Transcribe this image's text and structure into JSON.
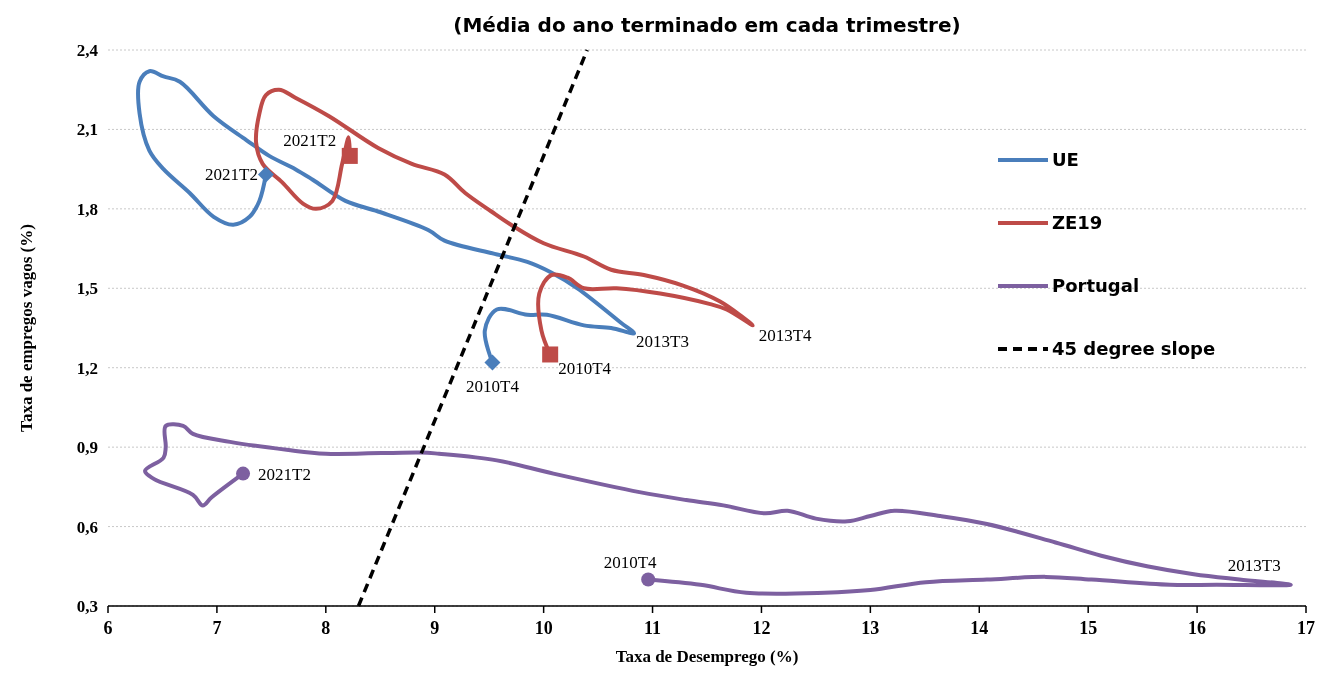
{
  "chart_data": {
    "type": "line",
    "title": "(Média do ano terminado em cada trimestre)",
    "xlabel": "Taxa de Desemprego (%)",
    "ylabel": "Taxa de empregos vagos (%)",
    "xlim": [
      6,
      17
    ],
    "xticks": [
      6,
      7,
      8,
      9,
      10,
      11,
      12,
      13,
      14,
      15,
      16,
      17
    ],
    "ylim": [
      0.3,
      2.4
    ],
    "yticks": [
      {
        "value": 0.3,
        "label": "0,3"
      },
      {
        "value": 0.6,
        "label": "0,6"
      },
      {
        "value": 0.9,
        "label": "0,9"
      },
      {
        "value": 1.2,
        "label": "1,2"
      },
      {
        "value": 1.5,
        "label": "1,5"
      },
      {
        "value": 1.8,
        "label": "1,8"
      },
      {
        "value": 2.1,
        "label": "2,1"
      },
      {
        "value": 2.4,
        "label": "2,4"
      }
    ],
    "grid": "y",
    "legend": "right",
    "series": [
      {
        "name": "UE",
        "color": "#4a7ebb",
        "x": [
          9.53,
          9.46,
          9.57,
          9.85,
          10.03,
          10.37,
          10.62,
          10.83,
          10.71,
          10.31,
          10.07,
          9.85,
          9.55,
          9.09,
          8.94,
          8.48,
          8.18,
          7.88,
          7.72,
          7.48,
          7.27,
          6.97,
          6.66,
          6.51,
          6.38,
          6.29,
          6.29,
          6.38,
          6.51,
          6.75,
          6.97,
          7.15,
          7.3,
          7.39,
          7.45
        ],
        "values": [
          1.22,
          1.34,
          1.42,
          1.4,
          1.4,
          1.36,
          1.35,
          1.33,
          1.37,
          1.5,
          1.56,
          1.6,
          1.63,
          1.68,
          1.72,
          1.79,
          1.83,
          1.91,
          1.95,
          2.0,
          2.06,
          2.15,
          2.28,
          2.3,
          2.32,
          2.28,
          2.16,
          2.02,
          1.95,
          1.86,
          1.77,
          1.74,
          1.77,
          1.83,
          1.93
        ]
      },
      {
        "name": "ZE19",
        "color": "#be4b48",
        "x": [
          10.06,
          9.98,
          9.96,
          10.07,
          10.22,
          10.37,
          10.67,
          11.07,
          11.53,
          11.68,
          11.92,
          11.83,
          11.62,
          11.28,
          10.92,
          10.62,
          10.37,
          10.0,
          9.7,
          9.52,
          9.28,
          9.09,
          8.79,
          8.48,
          8.03,
          7.72,
          7.57,
          7.45,
          7.39,
          7.36,
          7.42,
          7.6,
          7.79,
          7.91,
          8.06,
          8.15,
          8.21,
          8.22
        ],
        "values": [
          1.25,
          1.34,
          1.48,
          1.55,
          1.54,
          1.5,
          1.5,
          1.48,
          1.44,
          1.42,
          1.36,
          1.39,
          1.45,
          1.51,
          1.55,
          1.57,
          1.62,
          1.67,
          1.74,
          1.79,
          1.86,
          1.93,
          1.97,
          2.03,
          2.15,
          2.22,
          2.25,
          2.23,
          2.16,
          2.05,
          1.97,
          1.9,
          1.82,
          1.8,
          1.83,
          1.97,
          2.07,
          2.0
        ]
      },
      {
        "name": "Portugal",
        "color": "#7d60a0",
        "x": [
          10.96,
          11.44,
          11.86,
          12.58,
          13.0,
          13.51,
          14.07,
          14.61,
          15.03,
          15.75,
          16.18,
          16.86,
          16.39,
          15.97,
          15.54,
          15.12,
          14.7,
          14.07,
          13.64,
          13.22,
          13.0,
          12.79,
          12.5,
          12.24,
          12.03,
          11.65,
          11.31,
          10.88,
          10.09,
          9.57,
          9.04,
          8.87,
          8.0,
          7.64,
          7.12,
          6.78,
          6.69,
          6.53,
          6.53,
          6.51,
          6.34,
          6.42,
          6.78,
          6.87,
          6.95,
          7.24
        ],
        "values": [
          0.4,
          0.38,
          0.35,
          0.35,
          0.36,
          0.39,
          0.4,
          0.41,
          0.4,
          0.38,
          0.38,
          0.38,
          0.4,
          0.42,
          0.45,
          0.49,
          0.54,
          0.61,
          0.64,
          0.66,
          0.64,
          0.62,
          0.63,
          0.66,
          0.65,
          0.68,
          0.7,
          0.73,
          0.8,
          0.85,
          0.875,
          0.88,
          0.875,
          0.89,
          0.92,
          0.95,
          0.98,
          0.98,
          0.9,
          0.86,
          0.81,
          0.78,
          0.72,
          0.68,
          0.71,
          0.8
        ]
      },
      {
        "name": "45 degree slope",
        "color": "#000000",
        "line_style": "dashed",
        "x": [
          8.3,
          10.4
        ],
        "values": [
          0.3,
          2.4
        ]
      },
      {
        "type": "scatter",
        "color": "#4a7ebb",
        "marker": "diamond",
        "x": [
          9.53,
          7.45
        ],
        "values": [
          1.22,
          1.93
        ]
      },
      {
        "type": "scatter",
        "color": "#be4b48",
        "marker": "square",
        "x": [
          10.06,
          8.22
        ],
        "values": [
          1.25,
          2.0
        ]
      },
      {
        "type": "scatter",
        "color": "#7d60a0",
        "marker": "circle",
        "x": [
          10.96,
          7.24
        ],
        "values": [
          0.4,
          0.8
        ]
      }
    ],
    "annotations": [
      {
        "text": "2021T2",
        "x": 7.45,
        "y": 1.93
      },
      {
        "text": "2021T2",
        "x": 8.22,
        "y": 2.0
      },
      {
        "text": "2010T4",
        "x": 9.53,
        "y": 1.22
      },
      {
        "text": "2010T4",
        "x": 10.06,
        "y": 1.25
      },
      {
        "text": "2013T3",
        "x": 10.83,
        "y": 1.33
      },
      {
        "text": "2013T4",
        "x": 11.92,
        "y": 1.36
      },
      {
        "text": "2021T2",
        "x": 7.24,
        "y": 0.8
      },
      {
        "text": "2010T4",
        "x": 10.96,
        "y": 0.4
      },
      {
        "text": "2013T3",
        "x": 16.86,
        "y": 0.38
      }
    ]
  }
}
